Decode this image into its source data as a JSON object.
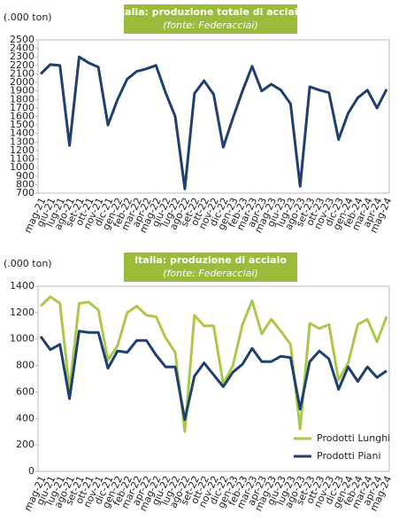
{
  "chart_data": [
    {
      "type": "line",
      "title": "Italia: produzione totale di acciaio",
      "subtitle": "(fonte: Federacciai)",
      "y_label": "(.000 ton)",
      "categories": [
        "mag-21",
        "giu-21",
        "lug-21",
        "ago-21",
        "set-21",
        "ott-21",
        "nov-21",
        "dic-21",
        "gen-22",
        "feb-22",
        "mar-22",
        "apr-22",
        "mag-22",
        "giu-22",
        "lug-22",
        "ago-22",
        "set-22",
        "ott-22",
        "nov-22",
        "dic-22",
        "gen-23",
        "feb-23",
        "mar-23",
        "apr-23",
        "mag-23",
        "giu-23",
        "lug-23",
        "ago-23",
        "set-23",
        "ott-23",
        "nov-23",
        "dic-23",
        "gen-24",
        "feb-24",
        "mar-24",
        "apr-24",
        "mag-24"
      ],
      "series": [
        {
          "name": null,
          "color": "#1f3f6e",
          "values": [
            2100,
            2210,
            2200,
            1260,
            2300,
            2230,
            2180,
            1500,
            1800,
            2040,
            2130,
            2160,
            2200,
            1880,
            1600,
            750,
            1870,
            2020,
            1860,
            1240,
            1580,
            1900,
            2190,
            1900,
            1980,
            1910,
            1750,
            780,
            1950,
            1910,
            1880,
            1330,
            1640,
            1820,
            1910,
            1700,
            1920
          ]
        }
      ],
      "ylim": [
        700,
        2500
      ],
      "yticks": [
        700,
        800,
        900,
        1000,
        1100,
        1200,
        1300,
        1400,
        1500,
        1600,
        1700,
        1800,
        1900,
        2000,
        2100,
        2200,
        2300,
        2400,
        2500
      ],
      "grid": false,
      "title_color": "#9bbb3b"
    },
    {
      "type": "line",
      "title": "Italia: produzione di acciaio",
      "subtitle": "(fonte: Federacciai)",
      "y_label": "(.000 ton)",
      "categories": [
        "mag-21",
        "giu-21",
        "lug-21",
        "ago-21",
        "set-21",
        "ott-21",
        "nov-21",
        "dic-21",
        "gen-22",
        "feb-22",
        "mar-22",
        "apr-22",
        "mag-22",
        "giu-22",
        "lug-22",
        "ago-22",
        "set-22",
        "ott-22",
        "nov-22",
        "dic-22",
        "gen-23",
        "feb-23",
        "mar-23",
        "apr-23",
        "mag-23",
        "giu-23",
        "lug-23",
        "ago-23",
        "set-23",
        "ott-23",
        "nov-23",
        "dic-23",
        "gen-24",
        "feb-24",
        "mar-24",
        "apr-24",
        "mag-24"
      ],
      "series": [
        {
          "name": "Prodotti Lunghi",
          "color": "#a9c94a",
          "values": [
            1250,
            1320,
            1270,
            620,
            1270,
            1280,
            1220,
            840,
            950,
            1200,
            1250,
            1180,
            1170,
            1010,
            900,
            300,
            1180,
            1100,
            1100,
            660,
            800,
            1110,
            1290,
            1040,
            1150,
            1060,
            960,
            320,
            1120,
            1080,
            1110,
            690,
            820,
            1110,
            1150,
            980,
            1170
          ]
        },
        {
          "name": "Prodotti Piani",
          "color": "#1f3f6e",
          "values": [
            1020,
            920,
            960,
            550,
            1060,
            1050,
            1050,
            780,
            910,
            900,
            990,
            990,
            880,
            790,
            790,
            390,
            720,
            820,
            730,
            640,
            750,
            810,
            930,
            830,
            830,
            870,
            860,
            470,
            830,
            910,
            850,
            620,
            790,
            680,
            790,
            710,
            760
          ]
        }
      ],
      "ylim": [
        0,
        1400
      ],
      "yticks": [
        0,
        200,
        400,
        600,
        800,
        1000,
        1200,
        1400
      ],
      "grid": false,
      "legend": "lower right",
      "title_color": "#9bbb3b"
    }
  ]
}
